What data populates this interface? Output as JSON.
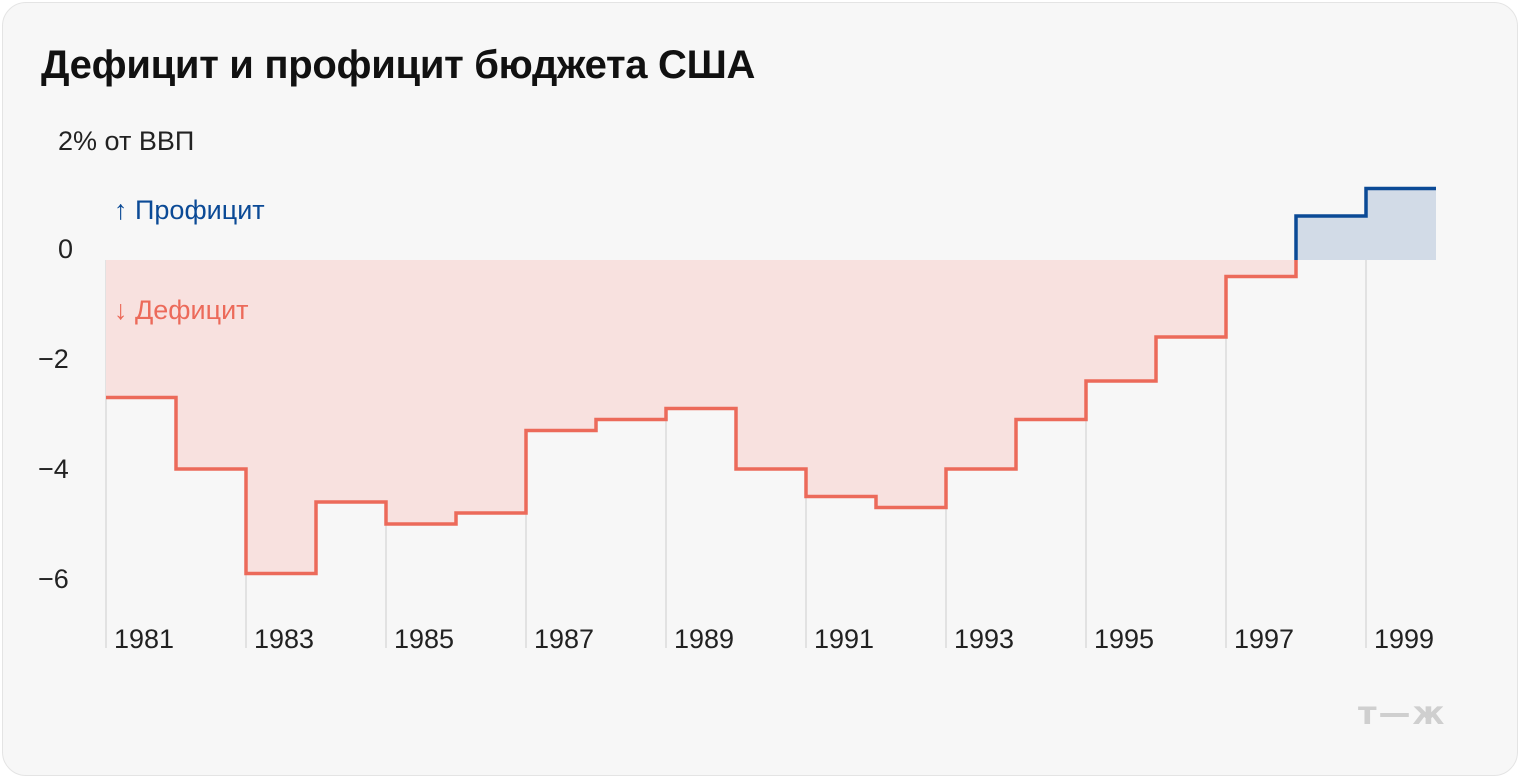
{
  "title": "Дефицит и профицит бюджета США",
  "logo_text": "т—ж",
  "colors": {
    "deficit": "#ec6a5a",
    "deficit_fill": "#f8e1df",
    "surplus": "#0b4a96",
    "surplus_fill": "#d2dbe7",
    "grid": "#dcdcdc"
  },
  "chart_data": {
    "type": "area",
    "step": true,
    "unit_label": "2% от ВВП",
    "ylim": [
      -6.5,
      2
    ],
    "y_ticks": [
      {
        "value": 2,
        "label": "2% от ВВП"
      },
      {
        "value": 0,
        "label": "0"
      },
      {
        "value": -2,
        "label": "−2"
      },
      {
        "value": -4,
        "label": "−4"
      },
      {
        "value": -6,
        "label": "−6"
      }
    ],
    "x_tick_labels": [
      "1981",
      "1983",
      "1985",
      "1987",
      "1989",
      "1991",
      "1993",
      "1995",
      "1997",
      "1999"
    ],
    "x": [
      1981,
      1982,
      1983,
      1984,
      1985,
      1986,
      1987,
      1988,
      1989,
      1990,
      1991,
      1992,
      1993,
      1994,
      1995,
      1996,
      1997,
      1998,
      1999
    ],
    "values": [
      -2.5,
      -3.8,
      -5.7,
      -4.4,
      -4.8,
      -4.6,
      -3.1,
      -2.9,
      -2.7,
      -3.8,
      -4.3,
      -4.5,
      -3.8,
      -2.9,
      -2.2,
      -1.4,
      -0.3,
      0.8,
      1.3
    ],
    "annotations": {
      "surplus": "↑ Профицит",
      "deficit": "↓ Дефицит"
    }
  }
}
